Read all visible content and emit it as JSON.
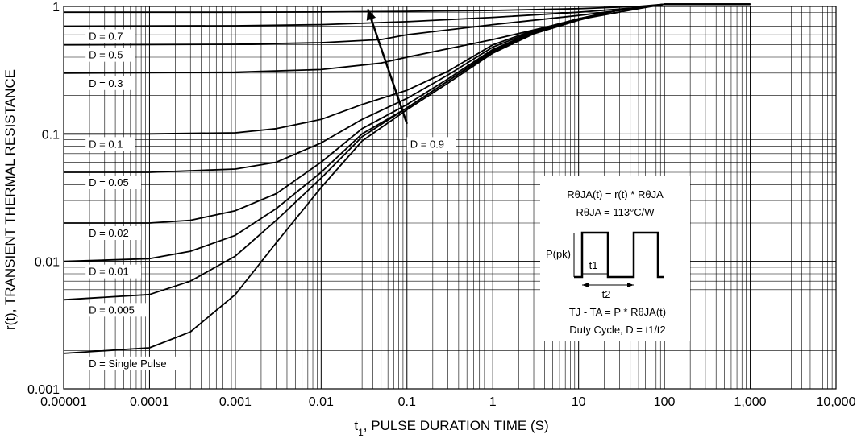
{
  "chart_data": {
    "type": "line",
    "x_scale": "log",
    "y_scale": "log",
    "xlim": [
      1e-05,
      10000
    ],
    "ylim": [
      0.001,
      1
    ],
    "grid": true,
    "xlabel_t": "t",
    "xlabel_sub": "1",
    "xlabel_rest": ",  PULSE DURATION TIME (S)",
    "ylabel": "r(t), TRANSIENT THERMAL RESISTANCE",
    "x_ticks": [
      {
        "value": 1e-05,
        "label": "0.00001"
      },
      {
        "value": 0.0001,
        "label": "0.0001"
      },
      {
        "value": 0.001,
        "label": "0.001"
      },
      {
        "value": 0.01,
        "label": "0.01"
      },
      {
        "value": 0.1,
        "label": "0.1"
      },
      {
        "value": 1,
        "label": "1"
      },
      {
        "value": 10,
        "label": "10"
      },
      {
        "value": 100,
        "label": "100"
      },
      {
        "value": 1000,
        "label": "1,000"
      },
      {
        "value": 10000,
        "label": "10,000"
      }
    ],
    "y_ticks": [
      {
        "value": 1,
        "label": "1"
      },
      {
        "value": 0.1,
        "label": "0.1"
      },
      {
        "value": 0.01,
        "label": "0.01"
      },
      {
        "value": 0.001,
        "label": "0.001"
      }
    ],
    "series": [
      {
        "name": "D = 0.9",
        "x": [
          1e-05,
          0.001,
          0.01,
          0.1,
          1,
          10,
          50,
          100,
          1000
        ],
        "y": [
          0.9,
          0.9,
          0.905,
          0.915,
          0.93,
          0.96,
          1.0,
          1.04,
          1.04
        ]
      },
      {
        "name": "D = 0.7",
        "x": [
          1e-05,
          0.001,
          0.01,
          0.1,
          1,
          10,
          50,
          100,
          1000
        ],
        "y": [
          0.7,
          0.705,
          0.72,
          0.76,
          0.82,
          0.9,
          0.98,
          1.04,
          1.04
        ]
      },
      {
        "name": "D = 0.5",
        "x": [
          1e-05,
          0.001,
          0.01,
          0.05,
          0.1,
          1,
          10,
          50,
          100,
          1000
        ],
        "y": [
          0.5,
          0.505,
          0.52,
          0.55,
          0.6,
          0.72,
          0.85,
          0.97,
          1.04,
          1.04
        ]
      },
      {
        "name": "D = 0.3",
        "x": [
          1e-05,
          0.001,
          0.01,
          0.05,
          0.1,
          1,
          10,
          50,
          100,
          1000
        ],
        "y": [
          0.3,
          0.305,
          0.32,
          0.36,
          0.4,
          0.55,
          0.79,
          0.96,
          1.04,
          1.04
        ]
      },
      {
        "name": "D = 0.1",
        "x": [
          1e-05,
          0.0001,
          0.001,
          0.003,
          0.01,
          0.03,
          0.1,
          0.3,
          1,
          3,
          10,
          30,
          100,
          1000
        ],
        "y": [
          0.1,
          0.1,
          0.102,
          0.11,
          0.13,
          0.17,
          0.22,
          0.31,
          0.5,
          0.65,
          0.8,
          0.94,
          1.04,
          1.04
        ]
      },
      {
        "name": "D = 0.05",
        "x": [
          1e-05,
          0.0001,
          0.001,
          0.003,
          0.01,
          0.03,
          0.1,
          0.3,
          1,
          3,
          10,
          30,
          100,
          1000
        ],
        "y": [
          0.05,
          0.05,
          0.053,
          0.06,
          0.085,
          0.13,
          0.19,
          0.29,
          0.48,
          0.64,
          0.8,
          0.94,
          1.04,
          1.04
        ]
      },
      {
        "name": "D = 0.02",
        "x": [
          1e-05,
          0.0001,
          0.0003,
          0.001,
          0.003,
          0.01,
          0.03,
          0.1,
          0.3,
          1,
          3,
          10,
          30,
          100,
          1000
        ],
        "y": [
          0.02,
          0.02,
          0.021,
          0.025,
          0.034,
          0.06,
          0.11,
          0.17,
          0.27,
          0.46,
          0.63,
          0.79,
          0.94,
          1.04,
          1.04
        ]
      },
      {
        "name": "D = 0.01",
        "x": [
          1e-05,
          0.0001,
          0.0003,
          0.001,
          0.003,
          0.01,
          0.03,
          0.1,
          0.3,
          1,
          3,
          10,
          30,
          100,
          1000
        ],
        "y": [
          0.01,
          0.0105,
          0.012,
          0.016,
          0.026,
          0.05,
          0.1,
          0.16,
          0.26,
          0.45,
          0.62,
          0.79,
          0.94,
          1.04,
          1.04
        ]
      },
      {
        "name": "D = 0.005",
        "x": [
          1e-05,
          0.0001,
          0.0003,
          0.001,
          0.003,
          0.01,
          0.03,
          0.1,
          0.3,
          1,
          3,
          10,
          30,
          100,
          1000
        ],
        "y": [
          0.005,
          0.0055,
          0.007,
          0.011,
          0.021,
          0.045,
          0.095,
          0.16,
          0.26,
          0.44,
          0.62,
          0.79,
          0.94,
          1.04,
          1.04
        ]
      },
      {
        "name": "D = Single Pulse",
        "x": [
          1e-05,
          0.0001,
          0.0003,
          0.001,
          0.003,
          0.01,
          0.03,
          0.1,
          0.3,
          1,
          3,
          10,
          30,
          100,
          1000
        ],
        "y": [
          0.0019,
          0.0021,
          0.0028,
          0.0055,
          0.014,
          0.038,
          0.088,
          0.155,
          0.25,
          0.43,
          0.61,
          0.78,
          0.94,
          1.04,
          1.04
        ]
      }
    ],
    "labels": [
      {
        "text": "D = 0.7",
        "anchor_x": 1.8e-05,
        "anchor_y": 0.7
      },
      {
        "text": "D = 0.5",
        "anchor_x": 1.8e-05,
        "anchor_y": 0.5
      },
      {
        "text": "D = 0.3",
        "anchor_x": 1.8e-05,
        "anchor_y": 0.3
      },
      {
        "text": "D = 0.1",
        "anchor_x": 1.8e-05,
        "anchor_y": 0.1
      },
      {
        "text": "D = 0.05",
        "anchor_x": 1.8e-05,
        "anchor_y": 0.05
      },
      {
        "text": "D = 0.02",
        "anchor_x": 1.8e-05,
        "anchor_y": 0.02
      },
      {
        "text": "D = 0.01",
        "anchor_x": 1.8e-05,
        "anchor_y": 0.01
      },
      {
        "text": "D = 0.005",
        "anchor_x": 1.8e-05,
        "anchor_y": 0.005
      },
      {
        "text": "D = Single Pulse",
        "anchor_x": 1.8e-05,
        "anchor_y": 0.0019
      },
      {
        "text": "D = 0.9",
        "anchor_x": 0.1,
        "anchor_y": 0.1
      }
    ],
    "arrow": {
      "from_x": 0.1,
      "from_y": 0.12,
      "to_x": 0.035,
      "to_y": 0.95
    }
  },
  "annotation": {
    "line1": "RθJA(t) = r(t) * RθJA",
    "line2": "RθJA = 113°C/W",
    "ppk": "P(pk)",
    "t1": "t1",
    "t2": "t2",
    "line3": "TJ - TA = P * RθJA(t)",
    "line4": "Duty Cycle, D = t1/t2"
  }
}
